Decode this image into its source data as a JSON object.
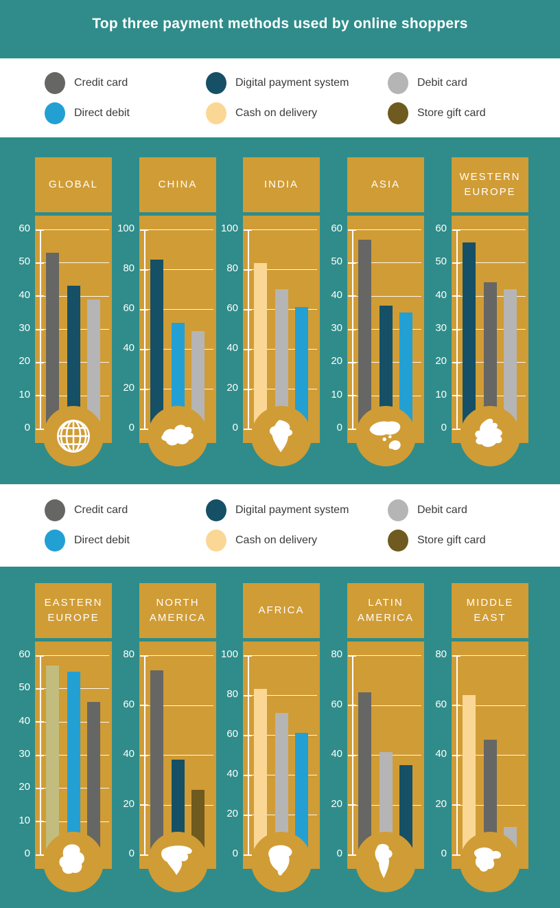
{
  "title": "Top three payment methods used by online shoppers",
  "colors": {
    "teal_background": "#2f8c8a",
    "gold_panel": "#d09c35",
    "white": "#ffffff",
    "legend_text": "#3a3a3a",
    "credit_card": "#666664",
    "digital_payment_system": "#155066",
    "debit_card": "#b5b5b5",
    "direct_debit": "#22a0d4",
    "cash_on_delivery": "#fbd795",
    "store_gift_card": "#6f5a1f",
    "cash_on_delivery_muted": "#c2bd7e"
  },
  "legend": {
    "items": [
      {
        "label": "Credit card",
        "color_key": "credit_card",
        "swatch_icon": "credit-card-swatch"
      },
      {
        "label": "Digital payment system",
        "color_key": "digital_payment_system",
        "swatch_icon": "digital-payment-system-swatch"
      },
      {
        "label": "Debit card",
        "color_key": "debit_card",
        "swatch_icon": "debit-card-swatch"
      },
      {
        "label": "Direct debit",
        "color_key": "direct_debit",
        "swatch_icon": "direct-debit-swatch"
      },
      {
        "label": "Cash on delivery",
        "color_key": "cash_on_delivery",
        "swatch_icon": "cash-on-delivery-swatch"
      },
      {
        "label": "Store gift card",
        "color_key": "store_gift_card",
        "swatch_icon": "store-gift-card-swatch"
      }
    ]
  },
  "chart_data": [
    {
      "type": "bar",
      "row": 1,
      "region": "GLOBAL",
      "icon": "globe-icon",
      "ylim": [
        0,
        60
      ],
      "yticks": [
        0,
        10,
        20,
        30,
        40,
        50,
        60
      ],
      "bars": [
        {
          "category": "Credit card",
          "value": 53,
          "color_key": "credit_card"
        },
        {
          "category": "Digital payment system",
          "value": 43,
          "color_key": "digital_payment_system"
        },
        {
          "category": "Debit card",
          "value": 39,
          "color_key": "debit_card"
        }
      ]
    },
    {
      "type": "bar",
      "row": 1,
      "region": "CHINA",
      "icon": "china-map-icon",
      "ylim": [
        0,
        100
      ],
      "yticks": [
        0,
        20,
        40,
        60,
        80,
        100
      ],
      "bars": [
        {
          "category": "Digital payment system",
          "value": 85,
          "color_key": "digital_payment_system"
        },
        {
          "category": "Direct debit",
          "value": 53,
          "color_key": "direct_debit"
        },
        {
          "category": "Debit card",
          "value": 49,
          "color_key": "debit_card"
        }
      ]
    },
    {
      "type": "bar",
      "row": 1,
      "region": "INDIA",
      "icon": "india-map-icon",
      "ylim": [
        0,
        100
      ],
      "yticks": [
        0,
        20,
        40,
        60,
        80,
        100
      ],
      "bars": [
        {
          "category": "Cash on delivery",
          "value": 83,
          "color_key": "cash_on_delivery"
        },
        {
          "category": "Debit card",
          "value": 70,
          "color_key": "debit_card"
        },
        {
          "category": "Direct debit",
          "value": 61,
          "color_key": "direct_debit"
        }
      ]
    },
    {
      "type": "bar",
      "row": 1,
      "region": "ASIA",
      "icon": "asia-map-icon",
      "ylim": [
        0,
        60
      ],
      "yticks": [
        0,
        10,
        20,
        30,
        40,
        50,
        60
      ],
      "bars": [
        {
          "category": "Credit card",
          "value": 57,
          "color_key": "credit_card"
        },
        {
          "category": "Digital payment system",
          "value": 37,
          "color_key": "digital_payment_system"
        },
        {
          "category": "Direct debit",
          "value": 35,
          "color_key": "direct_debit"
        }
      ]
    },
    {
      "type": "bar",
      "row": 1,
      "region": "WESTERN\nEUROPE",
      "icon": "western-europe-map-icon",
      "ylim": [
        0,
        60
      ],
      "yticks": [
        0,
        10,
        20,
        30,
        40,
        50,
        60
      ],
      "bars": [
        {
          "category": "Digital payment system",
          "value": 56,
          "color_key": "digital_payment_system"
        },
        {
          "category": "Credit card",
          "value": 44,
          "color_key": "credit_card"
        },
        {
          "category": "Debit card",
          "value": 42,
          "color_key": "debit_card"
        }
      ]
    },
    {
      "type": "bar",
      "row": 2,
      "region": "EASTERN\nEUROPE",
      "icon": "eastern-europe-map-icon",
      "ylim": [
        0,
        60
      ],
      "yticks": [
        0,
        10,
        20,
        30,
        40,
        50,
        60
      ],
      "bars": [
        {
          "category": "Cash on delivery",
          "value": 57,
          "color_key": "cash_on_delivery_muted"
        },
        {
          "category": "Direct debit",
          "value": 55,
          "color_key": "direct_debit"
        },
        {
          "category": "Credit card",
          "value": 46,
          "color_key": "credit_card"
        }
      ]
    },
    {
      "type": "bar",
      "row": 2,
      "region": "NORTH\nAMERICA",
      "icon": "north-america-map-icon",
      "ylim": [
        0,
        80
      ],
      "yticks": [
        0,
        20,
        40,
        60,
        80
      ],
      "bars": [
        {
          "category": "Credit card",
          "value": 74,
          "color_key": "credit_card"
        },
        {
          "category": "Digital payment system",
          "value": 38,
          "color_key": "digital_payment_system"
        },
        {
          "category": "Store gift card",
          "value": 26,
          "color_key": "store_gift_card"
        }
      ]
    },
    {
      "type": "bar",
      "row": 2,
      "region": "AFRICA",
      "icon": "africa-map-icon",
      "ylim": [
        0,
        100
      ],
      "yticks": [
        0,
        20,
        40,
        60,
        80,
        100
      ],
      "bars": [
        {
          "category": "Cash on delivery",
          "value": 83,
          "color_key": "cash_on_delivery"
        },
        {
          "category": "Debit card",
          "value": 71,
          "color_key": "debit_card"
        },
        {
          "category": "Direct debit",
          "value": 61,
          "color_key": "direct_debit"
        }
      ]
    },
    {
      "type": "bar",
      "row": 2,
      "region": "LATIN\nAMERICA",
      "icon": "latin-america-map-icon",
      "ylim": [
        0,
        80
      ],
      "yticks": [
        0,
        20,
        40,
        60,
        80
      ],
      "bars": [
        {
          "category": "Credit card",
          "value": 65,
          "color_key": "credit_card"
        },
        {
          "category": "Debit card",
          "value": 41,
          "color_key": "debit_card"
        },
        {
          "category": "Digital payment system",
          "value": 36,
          "color_key": "digital_payment_system"
        }
      ]
    },
    {
      "type": "bar",
      "row": 2,
      "region": "MIDDLE\nEAST",
      "icon": "middle-east-map-icon",
      "ylim": [
        0,
        80
      ],
      "yticks": [
        0,
        20,
        40,
        60,
        80
      ],
      "bars": [
        {
          "category": "Cash on delivery",
          "value": 64,
          "color_key": "cash_on_delivery"
        },
        {
          "category": "Credit card",
          "value": 46,
          "color_key": "credit_card"
        },
        {
          "category": "Debit card",
          "value": 11,
          "color_key": "debit_card"
        }
      ]
    }
  ]
}
